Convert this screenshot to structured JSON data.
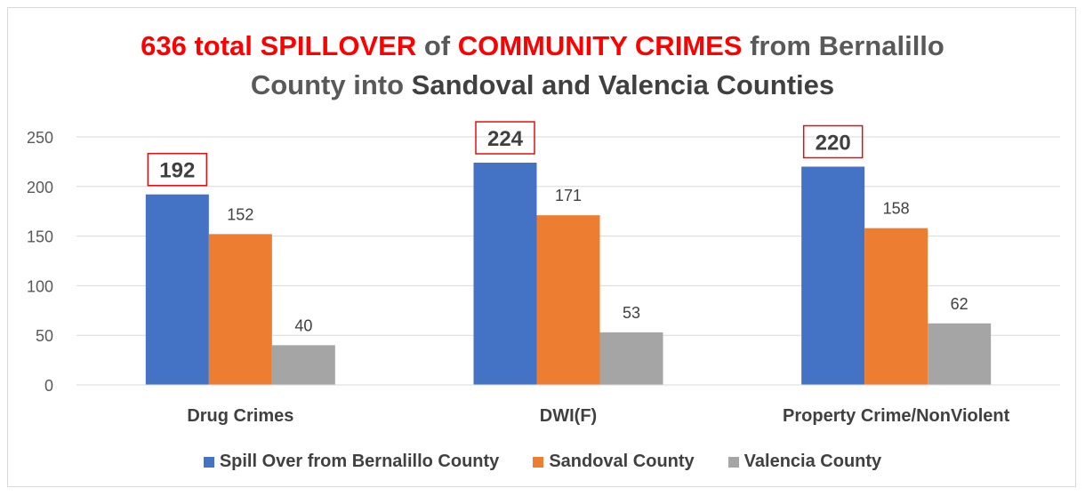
{
  "chart_data": {
    "type": "bar",
    "title_parts": [
      {
        "text": "636 total SPILLOVER",
        "color": "#ff0000"
      },
      {
        "text": " of ",
        "color": "#595959"
      },
      {
        "text": "COMMUNITY CRIMES",
        "color": "#ff0000"
      },
      {
        "text": " from Bernalillo",
        "color": "#595959"
      },
      {
        "text": "County into ",
        "color": "#595959",
        "newline": true
      },
      {
        "text": "Sandoval and Valencia Counties",
        "color": "#404040"
      }
    ],
    "categories": [
      "Drug Crimes",
      "DWI(F)",
      "Property Crime/NonViolent"
    ],
    "series": [
      {
        "name": "Spill Over from Bernalillo County",
        "color": "#4472c4",
        "values": [
          192,
          224,
          220
        ],
        "labels": [
          "192",
          "224",
          "220"
        ],
        "label_style": "boxed"
      },
      {
        "name": "Sandoval County",
        "color": "#ed7d31",
        "values": [
          152,
          171,
          158
        ],
        "labels": [
          "152",
          "171",
          "158"
        ]
      },
      {
        "name": "Valencia County",
        "color": "#a5a5a5",
        "values": [
          40,
          53,
          62
        ],
        "labels": [
          "40",
          "53",
          "62"
        ]
      }
    ],
    "yticks": [
      "0",
      "50",
      "100",
      "150",
      "200",
      "250"
    ],
    "ylim": [
      0,
      250
    ],
    "grid": true,
    "legend_position": "bottom"
  }
}
